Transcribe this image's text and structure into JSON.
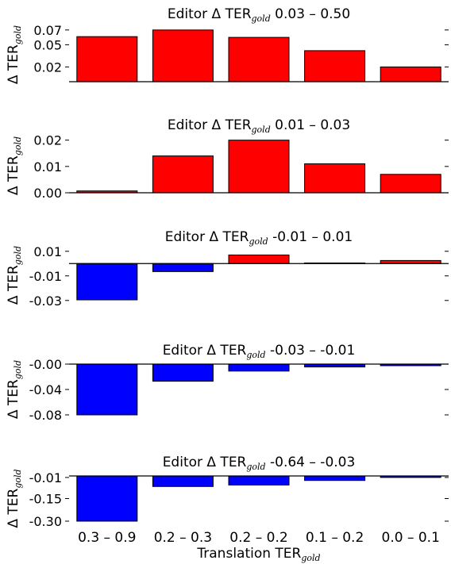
{
  "colors": {
    "positive": "#ff0000",
    "negative": "#0000ff",
    "edge": "#000000"
  },
  "chart_data": [
    {
      "type": "bar",
      "title": {
        "prefix": "Editor Δ TER",
        "sub": "gold",
        "suffix": " 0.03 – 0.50"
      },
      "ylabel": {
        "main": "Δ TER",
        "sub": "gold"
      },
      "categories": [
        "0.3 – 0.9",
        "0.2 – 0.3",
        "0.2 – 0.2",
        "0.1 – 0.2",
        "0.0 – 0.1"
      ],
      "values": [
        0.061,
        0.07,
        0.06,
        0.042,
        0.02
      ],
      "ylim": [
        0.0,
        0.073
      ],
      "yticks": [
        0.02,
        0.05,
        0.07
      ],
      "yticklabels": [
        "0.02",
        "0.05",
        "0.07"
      ],
      "grid": false
    },
    {
      "type": "bar",
      "title": {
        "prefix": "Editor Δ TER",
        "sub": "gold",
        "suffix": " 0.01 – 0.03"
      },
      "ylabel": {
        "main": "Δ TER",
        "sub": "gold"
      },
      "categories": [
        "0.3 – 0.9",
        "0.2 – 0.3",
        "0.2 – 0.2",
        "0.1 – 0.2",
        "0.0 – 0.1"
      ],
      "values": [
        0.0007,
        0.014,
        0.02,
        0.011,
        0.007
      ],
      "ylim": [
        0.0,
        0.0205
      ],
      "yticks": [
        0.0,
        0.01,
        0.02
      ],
      "yticklabels": [
        "0.00",
        "0.01",
        "0.02"
      ],
      "grid": false
    },
    {
      "type": "bar",
      "title": {
        "prefix": "Editor Δ TER",
        "sub": "gold",
        "suffix": " -0.01 – 0.01"
      },
      "ylabel": {
        "main": "Δ TER",
        "sub": "gold"
      },
      "categories": [
        "0.3 – 0.9",
        "0.2 – 0.3",
        "0.2 – 0.2",
        "0.1 – 0.2",
        "0.0 – 0.1"
      ],
      "values": [
        -0.0295,
        -0.0065,
        0.007,
        0.0005,
        0.0025
      ],
      "ylim": [
        -0.0295,
        0.0105
      ],
      "yticks": [
        0.01,
        -0.01,
        -0.03
      ],
      "yticklabels": [
        "0.01",
        "-0.01",
        "-0.03"
      ],
      "grid": false
    },
    {
      "type": "bar",
      "title": {
        "prefix": "Editor Δ TER",
        "sub": "gold",
        "suffix": " -0.03 – -0.01"
      },
      "ylabel": {
        "main": "Δ TER",
        "sub": "gold"
      },
      "categories": [
        "0.3 – 0.9",
        "0.2 – 0.3",
        "0.2 – 0.2",
        "0.1 – 0.2",
        "0.0 – 0.1"
      ],
      "values": [
        -0.08,
        -0.027,
        -0.011,
        -0.0045,
        -0.0025
      ],
      "ylim": [
        -0.08,
        0.0
      ],
      "yticks": [
        0.0,
        -0.04,
        -0.08
      ],
      "yticklabels": [
        "-0.00",
        "-0.04",
        "-0.08"
      ],
      "grid": false
    },
    {
      "type": "bar",
      "title": {
        "prefix": "Editor Δ TER",
        "sub": "gold",
        "suffix": " -0.64 – -0.03"
      },
      "ylabel": {
        "main": "Δ TER",
        "sub": "gold"
      },
      "xlabel": {
        "main": "Translation TER",
        "sub": "gold"
      },
      "categories": [
        "0.3 – 0.9",
        "0.2 – 0.3",
        "0.2 – 0.2",
        "0.1 – 0.2",
        "0.0 – 0.1"
      ],
      "values": [
        -0.3,
        -0.07,
        -0.06,
        -0.03,
        -0.01
      ],
      "ylim": [
        -0.3,
        0.0
      ],
      "yticks": [
        -0.01,
        -0.15,
        -0.3
      ],
      "yticklabels": [
        "-0.01",
        "-0.15",
        "-0.30"
      ],
      "grid": false
    }
  ]
}
